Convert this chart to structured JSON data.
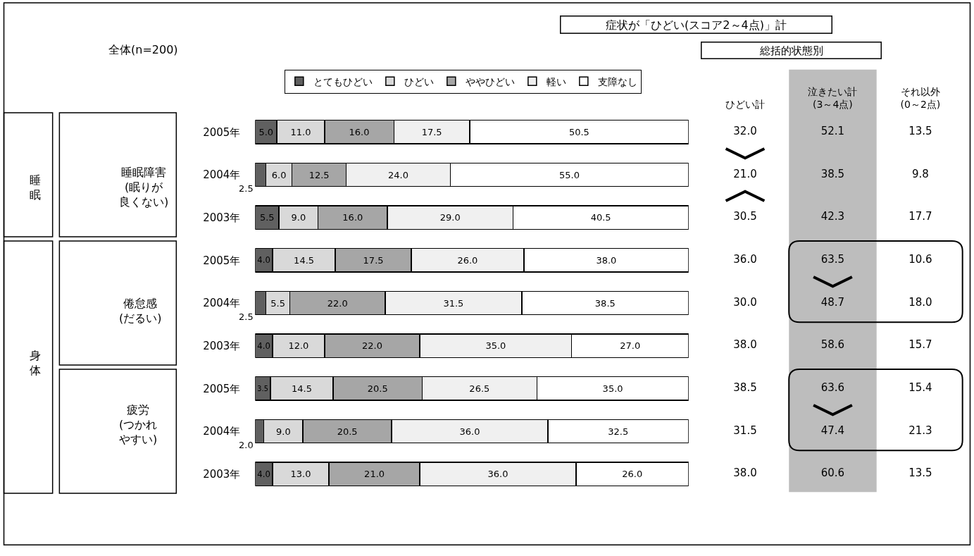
{
  "chart_data": [
    {
      "type": "bar",
      "orientation": "horizontal",
      "stacked": true,
      "legend": "top",
      "tick_labels": "y",
      "grid": false,
      "xlim": [
        0,
        100
      ],
      "categories": [
        "2005年",
        "2004年",
        "2003年",
        "2005年",
        "2004年",
        "2003年",
        "2005年",
        "2004年",
        "2003年"
      ],
      "series": [
        {
          "name": "とてもひどい",
          "color": "#606060",
          "values": [
            5.0,
            2.5,
            5.5,
            4.0,
            2.5,
            4.0,
            3.5,
            2.0,
            4.0
          ],
          "value_labels": [
            "5.0",
            "2.5",
            "5.5",
            "4.0",
            "2.5",
            "4.0",
            "3.5",
            "2.0",
            "4.0"
          ]
        },
        {
          "name": "ひどい",
          "color": "#d9d9d9",
          "values": [
            11.0,
            6.0,
            9.0,
            14.5,
            5.5,
            12.0,
            14.5,
            9.0,
            13.0
          ],
          "value_labels": [
            "11.0",
            "6.0",
            "9.0",
            "14.5",
            "5.5",
            "12.0",
            "14.5",
            "9.0",
            "13.0"
          ]
        },
        {
          "name": "ややひどい",
          "color": "#a6a6a6",
          "values": [
            16.0,
            12.5,
            16.0,
            17.5,
            22.0,
            22.0,
            20.5,
            20.5,
            21.0
          ],
          "value_labels": [
            "16.0",
            "12.5",
            "16.0",
            "17.5",
            "22.0",
            "22.0",
            "20.5",
            "20.5",
            "21.0"
          ]
        },
        {
          "name": "軽い",
          "color": "#f0f0f0",
          "values": [
            17.5,
            24.0,
            29.0,
            26.0,
            31.5,
            35.0,
            26.5,
            36.0,
            36.0
          ],
          "value_labels": [
            "17.5",
            "24.0",
            "29.0",
            "26.0",
            "31.5",
            "35.0",
            "26.5",
            "36.0",
            "36.0"
          ]
        },
        {
          "name": "支障なし",
          "color": "#ffffff",
          "values": [
            50.5,
            55.0,
            40.5,
            38.0,
            38.5,
            27.0,
            35.0,
            32.5,
            26.0
          ],
          "value_labels": [
            "50.5",
            "55.0",
            "40.5",
            "38.0",
            "38.5",
            "27.0",
            "35.0",
            "32.5",
            "26.0"
          ]
        }
      ],
      "annotations": [
        "全体(n=200)",
        "睡眠",
        "睡眠障害(眠りが良くない)",
        "身体",
        "倦怠感(だるい)",
        "疲労(つかれやすい)"
      ]
    },
    {
      "type": "other",
      "title": "症状が「ひどい(スコア2～4点)」計",
      "subtitle": "総括的状態別",
      "categories": [
        "ひどい計",
        "泣きたい計\n(3～4点)",
        "それ以外\n(0～2点)"
      ],
      "cell_labels": [
        [
          "32.0",
          "52.1",
          "13.5"
        ],
        [
          "21.0",
          "38.5",
          "9.8"
        ],
        [
          "30.5",
          "42.3",
          "17.7"
        ],
        [
          "36.0",
          "63.5",
          "10.6"
        ],
        [
          "30.0",
          "48.7",
          "18.0"
        ],
        [
          "38.0",
          "58.6",
          "15.7"
        ],
        [
          "38.5",
          "63.6",
          "15.4"
        ],
        [
          "31.5",
          "47.4",
          "21.3"
        ],
        [
          "38.0",
          "60.6",
          "13.5"
        ]
      ]
    }
  ]
}
